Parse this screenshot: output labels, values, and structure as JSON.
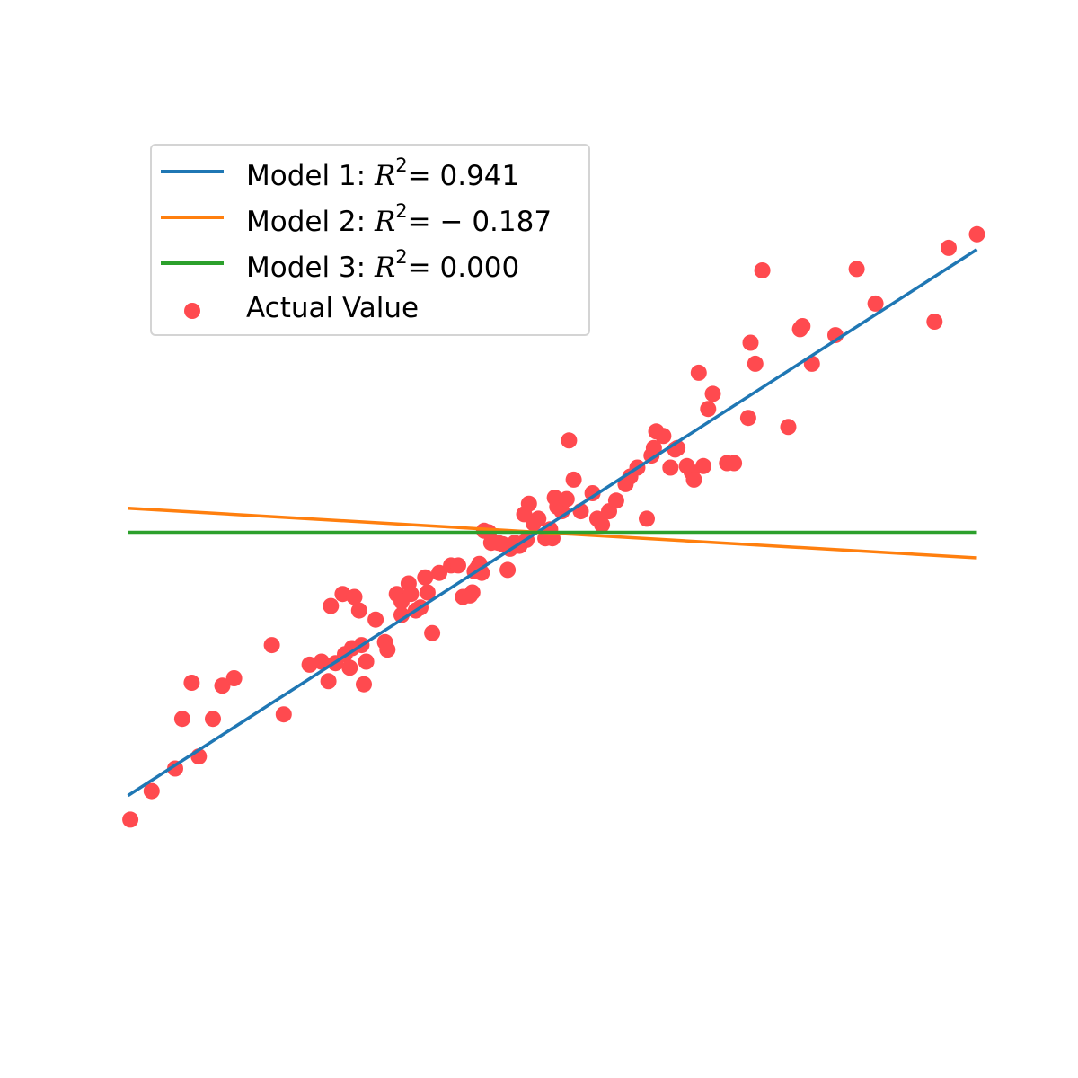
{
  "chart_data": {
    "type": "scatter",
    "title": "",
    "xlabel": "",
    "ylabel": "",
    "axes_visible": false,
    "xlim": [
      -2.0,
      2.0
    ],
    "ylim": [
      -3.0,
      3.0
    ],
    "legend_position": "upper-left",
    "series": [
      {
        "name": "Model 1",
        "kind": "line",
        "color": "#1f77b4",
        "r2_text": "0.941",
        "x": [
          -1.8,
          1.8
        ],
        "y": [
          -1.75,
          1.88
        ]
      },
      {
        "name": "Model 2",
        "kind": "line",
        "color": "#ff7f0e",
        "r2_text": "− 0.187",
        "x": [
          -1.8,
          1.8
        ],
        "y": [
          0.16,
          -0.17
        ]
      },
      {
        "name": "Model 3",
        "kind": "line",
        "color": "#2ca02c",
        "r2_text": "0.000",
        "x": [
          -1.8,
          1.8
        ],
        "y": [
          0.0,
          0.0
        ]
      },
      {
        "name": "Actual Value",
        "kind": "scatter",
        "color": "#ff4a4f",
        "points": [
          [
            -1.79,
            -1.91
          ],
          [
            -1.7,
            -1.72
          ],
          [
            -1.6,
            -1.57
          ],
          [
            -1.57,
            -1.24
          ],
          [
            -1.53,
            -1.0
          ],
          [
            -1.5,
            -1.49
          ],
          [
            -1.44,
            -1.24
          ],
          [
            -1.4,
            -1.02
          ],
          [
            -1.35,
            -0.97
          ],
          [
            -1.19,
            -0.75
          ],
          [
            -1.14,
            -1.21
          ],
          [
            -1.03,
            -0.88
          ],
          [
            -0.98,
            -0.86
          ],
          [
            -0.95,
            -0.99
          ],
          [
            -0.94,
            -0.49
          ],
          [
            -0.92,
            -0.87
          ],
          [
            -0.89,
            -0.41
          ],
          [
            -0.88,
            -0.81
          ],
          [
            -0.86,
            -0.9
          ],
          [
            -0.85,
            -0.77
          ],
          [
            -0.84,
            -0.43
          ],
          [
            -0.82,
            -0.52
          ],
          [
            -0.81,
            -0.75
          ],
          [
            -0.8,
            -1.01
          ],
          [
            -0.79,
            -0.86
          ],
          [
            -0.75,
            -0.58
          ],
          [
            -0.71,
            -0.73
          ],
          [
            -0.7,
            -0.78
          ],
          [
            -0.66,
            -0.41
          ],
          [
            -0.64,
            -0.46
          ],
          [
            -0.64,
            -0.55
          ],
          [
            -0.61,
            -0.34
          ],
          [
            -0.6,
            -0.41
          ],
          [
            -0.58,
            -0.52
          ],
          [
            -0.56,
            -0.5
          ],
          [
            -0.54,
            -0.3
          ],
          [
            -0.53,
            -0.4
          ],
          [
            -0.51,
            -0.67
          ],
          [
            -0.48,
            -0.27
          ],
          [
            -0.43,
            -0.22
          ],
          [
            -0.4,
            -0.22
          ],
          [
            -0.38,
            -0.43
          ],
          [
            -0.35,
            -0.42
          ],
          [
            -0.34,
            -0.4
          ],
          [
            -0.33,
            -0.26
          ],
          [
            -0.32,
            -0.24
          ],
          [
            -0.31,
            -0.21
          ],
          [
            -0.3,
            -0.27
          ],
          [
            -0.29,
            0.01
          ],
          [
            -0.27,
            0.0
          ],
          [
            -0.26,
            -0.07
          ],
          [
            -0.23,
            -0.07
          ],
          [
            -0.21,
            -0.08
          ],
          [
            -0.19,
            -0.25
          ],
          [
            -0.18,
            -0.11
          ],
          [
            -0.16,
            -0.07
          ],
          [
            -0.14,
            -0.09
          ],
          [
            -0.12,
            0.12
          ],
          [
            -0.11,
            -0.05
          ],
          [
            -0.1,
            0.19
          ],
          [
            -0.08,
            0.06
          ],
          [
            -0.06,
            0.09
          ],
          [
            -0.03,
            -0.04
          ],
          [
            -0.01,
            0.02
          ],
          [
            0.0,
            -0.04
          ],
          [
            0.01,
            0.23
          ],
          [
            0.02,
            0.17
          ],
          [
            0.04,
            0.14
          ],
          [
            0.06,
            0.22
          ],
          [
            0.07,
            0.61
          ],
          [
            0.09,
            0.35
          ],
          [
            0.12,
            0.14
          ],
          [
            0.17,
            0.26
          ],
          [
            0.19,
            0.09
          ],
          [
            0.21,
            0.05
          ],
          [
            0.24,
            0.14
          ],
          [
            0.27,
            0.21
          ],
          [
            0.31,
            0.32
          ],
          [
            0.33,
            0.37
          ],
          [
            0.36,
            0.43
          ],
          [
            0.4,
            0.09
          ],
          [
            0.42,
            0.51
          ],
          [
            0.43,
            0.56
          ],
          [
            0.44,
            0.67
          ],
          [
            0.47,
            0.64
          ],
          [
            0.5,
            0.43
          ],
          [
            0.52,
            0.55
          ],
          [
            0.53,
            0.56
          ],
          [
            0.57,
            0.44
          ],
          [
            0.59,
            0.4
          ],
          [
            0.6,
            0.35
          ],
          [
            0.62,
            1.06
          ],
          [
            0.64,
            0.44
          ],
          [
            0.66,
            0.82
          ],
          [
            0.68,
            0.92
          ],
          [
            0.74,
            0.46
          ],
          [
            0.77,
            0.46
          ],
          [
            0.83,
            0.76
          ],
          [
            0.84,
            1.26
          ],
          [
            0.86,
            1.12
          ],
          [
            0.89,
            1.74
          ],
          [
            1.0,
            0.7
          ],
          [
            1.05,
            1.35
          ],
          [
            1.06,
            1.37
          ],
          [
            1.1,
            1.12
          ],
          [
            1.2,
            1.31
          ],
          [
            1.29,
            1.75
          ],
          [
            1.37,
            1.52
          ],
          [
            1.62,
            1.4
          ],
          [
            1.68,
            1.89
          ],
          [
            1.8,
            1.98
          ]
        ]
      }
    ],
    "legend": [
      {
        "label": "Model 1: ",
        "r2_prefix": "R",
        "r2_sup": "2",
        "r2_value": "= 0.941"
      },
      {
        "label": "Model 2: ",
        "r2_prefix": "R",
        "r2_sup": "2",
        "r2_value": "= − 0.187"
      },
      {
        "label": "Model 3: ",
        "r2_prefix": "R",
        "r2_sup": "2",
        "r2_value": "= 0.000"
      },
      {
        "label": "Actual Value"
      }
    ]
  }
}
